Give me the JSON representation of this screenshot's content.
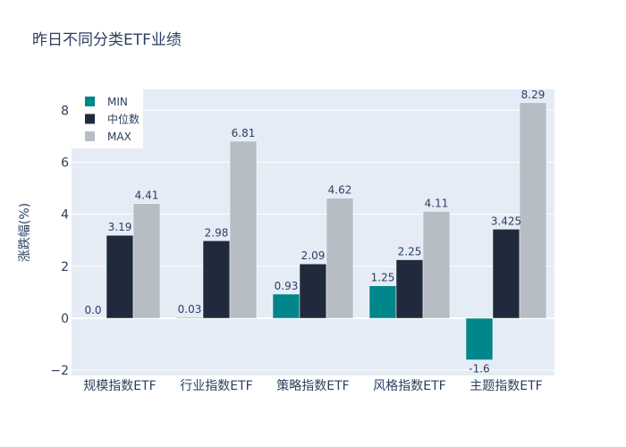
{
  "chart_data": {
    "type": "bar",
    "title": "昨日不同分类ETF业绩",
    "xlabel": "",
    "ylabel": "涨跌幅(%)",
    "ylim": [
      -2.2,
      8.8
    ],
    "yticks": [
      -2,
      0,
      2,
      4,
      6,
      8
    ],
    "ytick_labels": [
      "−2",
      "0",
      "2",
      "4",
      "6",
      "8"
    ],
    "grid": true,
    "legend": "top-left",
    "categories": [
      "规模指数ETF",
      "行业指数ETF",
      "策略指数ETF",
      "风格指数ETF",
      "主题指数ETF"
    ],
    "series": [
      {
        "name": "MIN",
        "color": "#00868b",
        "values": [
          0.0,
          0.03,
          0.93,
          1.25,
          -1.6
        ],
        "labels": [
          "0.0",
          "0.03",
          "0.93",
          "1.25",
          "-1.6"
        ]
      },
      {
        "name": "中位数",
        "color": "#1f2a3c",
        "values": [
          3.19,
          2.98,
          2.09,
          2.25,
          3.425
        ],
        "labels": [
          "3.19",
          "2.98",
          "2.09",
          "2.25",
          "3.425"
        ]
      },
      {
        "name": "MAX",
        "color": "#b7bdc5",
        "values": [
          4.41,
          6.81,
          4.62,
          4.11,
          8.29
        ],
        "labels": [
          "4.41",
          "6.81",
          "4.62",
          "4.11",
          "8.29"
        ]
      }
    ]
  }
}
